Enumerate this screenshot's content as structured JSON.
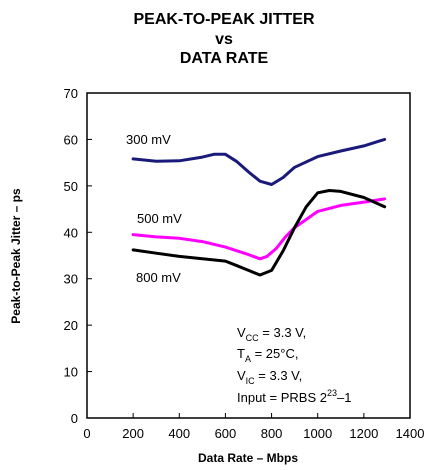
{
  "chart_data": {
    "type": "line",
    "title": [
      "PEAK-TO-PEAK JITTER",
      "vs",
      "DATA RATE"
    ],
    "xlabel": "Data Rate – Mbps",
    "ylabel": "Peak-to-Peak Jitter – ps",
    "xlim": [
      0,
      1400
    ],
    "ylim": [
      0,
      70
    ],
    "xticks": [
      "0",
      "200",
      "400",
      "600",
      "800",
      "1000",
      "1200",
      "1400"
    ],
    "yticks": [
      "0",
      "10",
      "20",
      "30",
      "40",
      "50",
      "60",
      "70"
    ],
    "grid": false,
    "series": [
      {
        "name": "300 mV",
        "color": "#1a1a7a",
        "x": [
          200,
          300,
          400,
          500,
          550,
          600,
          650,
          700,
          750,
          800,
          850,
          900,
          1000,
          1100,
          1200,
          1290
        ],
        "y": [
          55.8,
          55.3,
          55.4,
          56.2,
          56.8,
          56.8,
          55.2,
          53.0,
          51.0,
          50.3,
          51.8,
          54.0,
          56.3,
          57.5,
          58.6,
          60.0
        ]
      },
      {
        "name": "500 mV",
        "color": "#ff00ff",
        "x": [
          200,
          300,
          400,
          500,
          600,
          700,
          750,
          780,
          820,
          860,
          900,
          1000,
          1100,
          1200,
          1290
        ],
        "y": [
          39.5,
          39.0,
          38.7,
          38.0,
          36.8,
          35.2,
          34.3,
          34.8,
          36.5,
          39.0,
          41.0,
          44.5,
          45.8,
          46.5,
          47.2
        ]
      },
      {
        "name": "800 mV",
        "color": "#000000",
        "x": [
          200,
          300,
          400,
          500,
          600,
          650,
          700,
          750,
          800,
          850,
          900,
          950,
          1000,
          1050,
          1100,
          1200,
          1290
        ],
        "y": [
          36.2,
          35.5,
          34.8,
          34.3,
          33.8,
          32.8,
          31.8,
          30.8,
          31.8,
          36.0,
          41.0,
          45.5,
          48.5,
          49.0,
          48.8,
          47.5,
          45.5
        ]
      }
    ],
    "series_labels": [
      "300 mV",
      "500 mV",
      "800 mV"
    ],
    "conditions": {
      "vcc": {
        "pre": "V",
        "sub": "CC",
        "post": " = 3.3 V,"
      },
      "ta": {
        "pre": "T",
        "sub": "A",
        "post": " = 25°C,"
      },
      "vic": {
        "pre": "V",
        "sub": "IC",
        "post": " = 3.3 V,"
      },
      "input": {
        "pre": "Input = PRBS 2",
        "sup": "23",
        "post": "–1"
      }
    }
  }
}
